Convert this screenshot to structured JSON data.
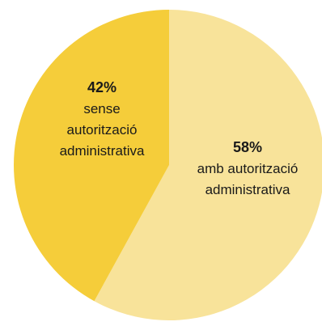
{
  "chart_data": {
    "type": "pie",
    "start": "top",
    "direction": "clockwise",
    "slices": [
      {
        "label": "amb autorització administrativa",
        "value": 58,
        "display_value": "58%",
        "label_lines": [
          "amb autorització",
          "administrativa"
        ],
        "color": "#F8E39A"
      },
      {
        "label": "sense autorització administrativa",
        "value": 42,
        "display_value": "42%",
        "label_lines": [
          "sense",
          "autorització",
          "administrativa"
        ],
        "color": "#F5CD3A"
      }
    ]
  }
}
